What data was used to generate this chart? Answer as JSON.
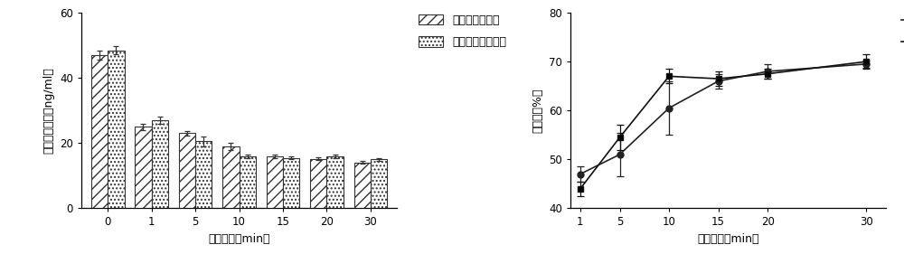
{
  "bar_labels": [
    "0",
    "1",
    "5",
    "10",
    "15",
    "20",
    "30"
  ],
  "bar_riboflavin": [
    47.0,
    25.0,
    23.0,
    19.0,
    16.0,
    15.2,
    14.0
  ],
  "bar_riboflavin_err": [
    1.5,
    1.0,
    0.8,
    1.0,
    0.5,
    0.5,
    0.4
  ],
  "bar_hypericin": [
    48.5,
    27.0,
    20.5,
    16.0,
    15.5,
    16.0,
    15.0
  ],
  "bar_hypericin_err": [
    1.2,
    1.2,
    1.5,
    0.5,
    0.5,
    0.5,
    0.5
  ],
  "bar_ylabel": "多环芳烃浓度（ng/ml）",
  "bar_xlabel": "光照时间（min）",
  "bar_ylim": [
    0,
    60
  ],
  "bar_yticks": [
    0,
    20,
    40,
    60
  ],
  "line_x": [
    1,
    5,
    10,
    15,
    20,
    30
  ],
  "line_riboflavin": [
    47.0,
    51.0,
    60.5,
    66.0,
    68.0,
    69.5
  ],
  "line_riboflavin_err": [
    1.5,
    4.5,
    5.5,
    1.5,
    1.5,
    0.8
  ],
  "line_hypericin": [
    44.0,
    54.5,
    67.0,
    66.5,
    67.5,
    70.0
  ],
  "line_hypericin_err": [
    1.5,
    2.5,
    1.5,
    1.5,
    1.0,
    1.5
  ],
  "line_ylabel": "降解率（%）",
  "line_xlabel": "光照时间（min）",
  "line_ylim": [
    40,
    80
  ],
  "line_yticks": [
    40,
    50,
    60,
    70,
    80
  ],
  "legend_riboflavin": "核黄素光动力组",
  "legend_hypericin": "金丝桃素光动力组",
  "hatch_riboflavin": "///",
  "hatch_hypericin": "....",
  "bar_color": "#ffffff",
  "bar_edgecolor": "#333333",
  "line_color_riboflavin": "#222222",
  "line_color_hypericin": "#111111",
  "marker_riboflavin": "o",
  "marker_hypericin": "s",
  "bg_color": "#ffffff",
  "font_size": 9,
  "tick_fontsize": 8.5
}
